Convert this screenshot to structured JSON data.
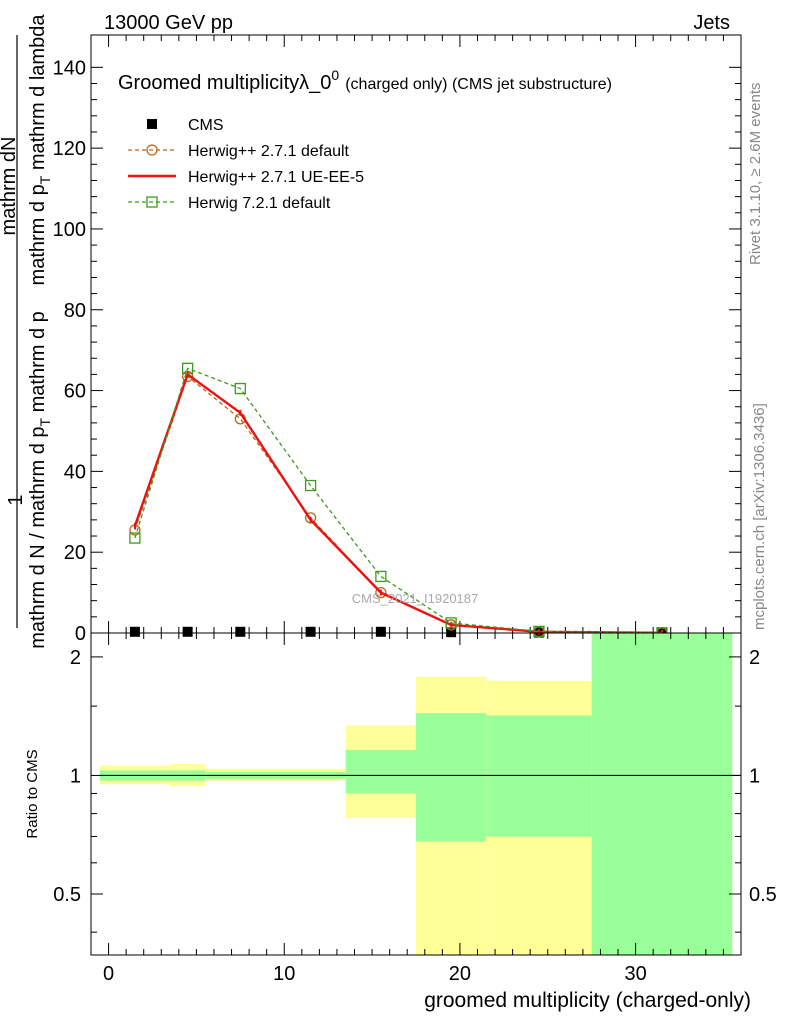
{
  "header": {
    "energy_label": "13000 GeV pp",
    "category_label": "Jets"
  },
  "plot_title": "Groomed multiplicityλ_0",
  "plot_title_sup": "0",
  "plot_title_tail": "(charged only) (CMS jet substructure)",
  "watermark": "CMS_2021_I1920187",
  "side_text": {
    "rivet": "Rivet 3.1.10, ≥ 2.6M events",
    "mcplots": "mcplots.cern.ch [arXiv:1306.3436]"
  },
  "ylabel": {
    "one": "1",
    "frac_top": "mathrm dN",
    "frac_bottom": "mathrm d p",
    "frac_bottom_sub": "T",
    "frac_bottom_tail": " mathrm d lambda",
    "lower": "mathrm d N / mathrm d p",
    "lower_sub": "T",
    "lower_tail": " mathrm d p"
  },
  "ratio_ylabel": "Ratio to CMS",
  "xlabel": "groomed multiplicity (charged-only)",
  "colors": {
    "cms": "#000000",
    "herwig_default": "#b8651b",
    "herwig_ueee5": "#ee1111",
    "herwig7": "#3e9a1a",
    "band_inner": "#99ff99",
    "band_outer": "#ffff99"
  },
  "chart_data": {
    "type": "line",
    "x_range": [
      -1,
      36
    ],
    "main_ylim": [
      0,
      148
    ],
    "main_yticks": [
      0,
      20,
      40,
      60,
      80,
      100,
      120,
      140
    ],
    "main_ytick_labels": [
      "0",
      "20",
      "40",
      "60",
      "80",
      "100",
      "120",
      "140"
    ],
    "ratio_scale": "log",
    "ratio_ylim": [
      0.35,
      2.3
    ],
    "ratio_yticks": [
      0.5,
      1,
      2
    ],
    "ratio_ytick_labels": [
      "0.5",
      "1",
      "2"
    ],
    "xticks": [
      0,
      10,
      20,
      30
    ],
    "xtick_labels": [
      "0",
      "10",
      "20",
      "30"
    ],
    "series": [
      {
        "name": "CMS",
        "key": "cms",
        "style": "marker",
        "x": [
          1.5,
          4.5,
          7.5,
          11.5,
          15.5,
          19.5,
          24.5,
          31.5
        ],
        "y": [
          0.3,
          0.3,
          0.3,
          0.3,
          0.3,
          0.2,
          0.1,
          0.1
        ]
      },
      {
        "name": "Herwig++ 2.7.1 default",
        "key": "herwig_default",
        "style": "dashed-circle",
        "x": [
          1.5,
          4.5,
          7.5,
          11.5,
          15.5,
          19.5,
          24.5,
          31.5
        ],
        "y": [
          25.5,
          63.5,
          53,
          28.5,
          10,
          2,
          0.3,
          0.05
        ]
      },
      {
        "name": "Herwig++ 2.7.1 UE-EE-5",
        "key": "herwig_ueee5",
        "style": "solid",
        "x": [
          1.5,
          4.5,
          7.5,
          11.5,
          15.5,
          19.5,
          24.5,
          31.5
        ],
        "y": [
          26.5,
          64,
          54.5,
          28,
          10,
          2,
          0.3,
          0.05
        ]
      },
      {
        "name": "Herwig 7.2.1 default",
        "key": "herwig7",
        "style": "dashed-square",
        "x": [
          1.5,
          4.5,
          7.5,
          11.5,
          15.5,
          19.5,
          24.5,
          31.5
        ],
        "y": [
          23.5,
          65.5,
          60.5,
          36.5,
          14,
          2.5,
          0.4,
          0.05
        ]
      }
    ],
    "ratio_bands": [
      {
        "x0": -0.5,
        "x1": 3.5,
        "outer": [
          0.95,
          1.06
        ],
        "inner": [
          0.97,
          1.03
        ]
      },
      {
        "x0": 3.5,
        "x1": 5.5,
        "outer": [
          0.94,
          1.07
        ],
        "inner": [
          0.97,
          1.03
        ]
      },
      {
        "x0": 5.5,
        "x1": 9.5,
        "outer": [
          0.97,
          1.04
        ],
        "inner": [
          0.98,
          1.02
        ]
      },
      {
        "x0": 9.5,
        "x1": 13.5,
        "outer": [
          0.97,
          1.04
        ],
        "inner": [
          0.98,
          1.02
        ]
      },
      {
        "x0": 13.5,
        "x1": 17.5,
        "outer": [
          0.78,
          1.34
        ],
        "inner": [
          0.9,
          1.16
        ]
      },
      {
        "x0": 17.5,
        "x1": 21.5,
        "outer": [
          0.35,
          1.78
        ],
        "inner": [
          0.68,
          1.44
        ]
      },
      {
        "x0": 21.5,
        "x1": 27.5,
        "outer": [
          0.35,
          1.74
        ],
        "inner": [
          0.7,
          1.42
        ]
      },
      {
        "x0": 27.5,
        "x1": 35.5,
        "outer": [
          0.35,
          2.3
        ],
        "inner": [
          0.35,
          2.3
        ]
      }
    ],
    "ratio_reference": 1
  }
}
